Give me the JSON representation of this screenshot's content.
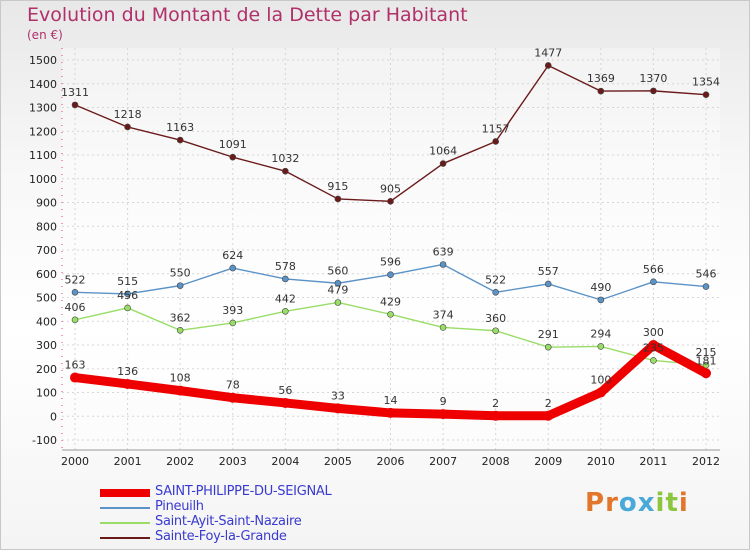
{
  "title": "Evolution du Montant de la Dette par Habitant",
  "subtitle": "(en €)",
  "logo": {
    "text": "Proxiti",
    "colors": [
      "#e2762b",
      "#e2762b",
      "#4aa9d8",
      "#4aa9d8",
      "#8cc63f",
      "#8cc63f",
      "#e2762b"
    ]
  },
  "chart_data": {
    "type": "line",
    "title": "Evolution du Montant de la Dette par Habitant",
    "subtitle": "(en €)",
    "x": [
      "2000",
      "2001",
      "2002",
      "2003",
      "2004",
      "2005",
      "2006",
      "2007",
      "2008",
      "2009",
      "2010",
      "2011",
      "2012"
    ],
    "ylim": [
      -100,
      1500
    ],
    "yticks": [
      -100,
      0,
      100,
      200,
      300,
      400,
      500,
      600,
      700,
      800,
      900,
      1000,
      1100,
      1200,
      1300,
      1400,
      1500
    ],
    "grid": true,
    "legend_position": "bottom-left",
    "series": [
      {
        "name": "SAINT-PHILIPPE-DU-SEIGNAL",
        "color": "#ee0000",
        "values": [
          163,
          136,
          108,
          78,
          56,
          33,
          14,
          9,
          2,
          2,
          100,
          300,
          181
        ]
      },
      {
        "name": "Pineuilh",
        "color": "#5b93c7",
        "values": [
          522,
          515,
          550,
          624,
          578,
          560,
          596,
          639,
          522,
          557,
          490,
          566,
          546
        ]
      },
      {
        "name": "Saint-Ayit-Saint-Nazaire",
        "color": "#99dd66",
        "values": [
          406,
          456,
          362,
          393,
          442,
          479,
          429,
          374,
          360,
          291,
          294,
          235,
          215
        ]
      },
      {
        "name": "Sainte-Foy-la-Grande",
        "color": "#6b1a1a",
        "values": [
          1311,
          1218,
          1163,
          1091,
          1032,
          915,
          905,
          1064,
          1157,
          1477,
          1369,
          1370,
          1354
        ]
      }
    ]
  }
}
